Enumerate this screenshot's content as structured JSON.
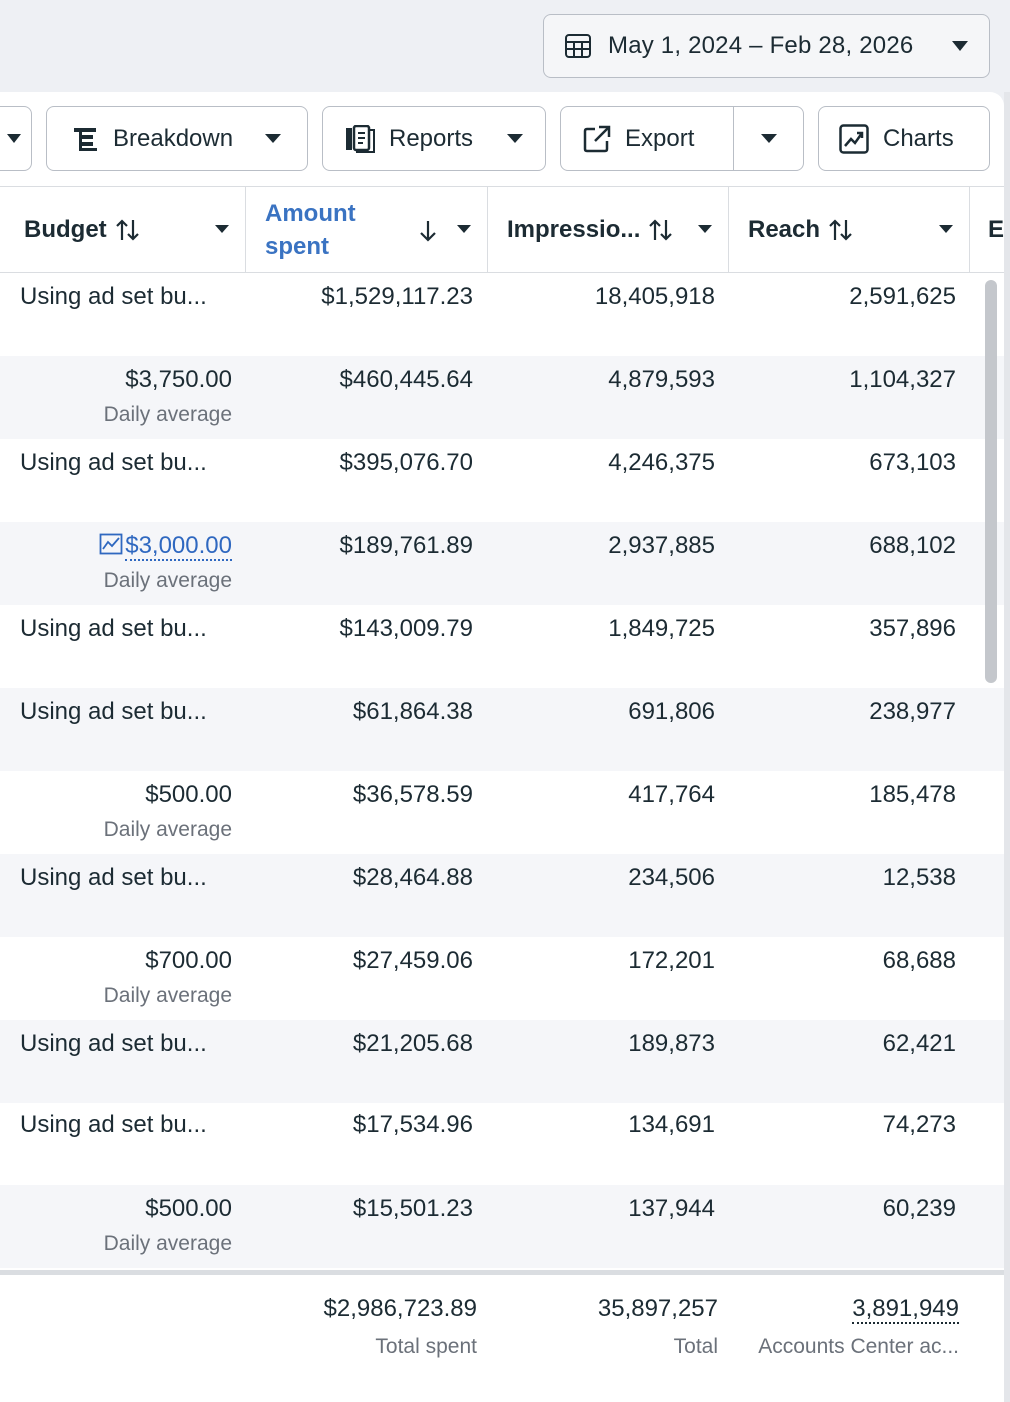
{
  "date_range": {
    "label": "May 1, 2024 – Feb 28, 2026"
  },
  "toolbar": {
    "breakdown_label": "Breakdown",
    "reports_label": "Reports",
    "export_label": "Export",
    "charts_label": "Charts"
  },
  "columns": {
    "budget": "Budget",
    "amount_spent": "Amount spent",
    "impressions": "Impressio...",
    "reach": "Reach",
    "next": "E"
  },
  "rows": [
    {
      "budget": "Using ad set bu...",
      "budget_sub": "",
      "spent": "$1,529,117.23",
      "impressions": "18,405,918",
      "reach": "2,591,625"
    },
    {
      "budget": "$3,750.00",
      "budget_sub": "Daily average",
      "spent": "$460,445.64",
      "impressions": "4,879,593",
      "reach": "1,104,327"
    },
    {
      "budget": "Using ad set bu...",
      "budget_sub": "",
      "spent": "$395,076.70",
      "impressions": "4,246,375",
      "reach": "673,103"
    },
    {
      "budget": "$3,000.00",
      "budget_sub": "Daily average",
      "spent": "$189,761.89",
      "impressions": "2,937,885",
      "reach": "688,102"
    },
    {
      "budget": "Using ad set bu...",
      "budget_sub": "",
      "spent": "$143,009.79",
      "impressions": "1,849,725",
      "reach": "357,896"
    },
    {
      "budget": "Using ad set bu...",
      "budget_sub": "",
      "spent": "$61,864.38",
      "impressions": "691,806",
      "reach": "238,977"
    },
    {
      "budget": "$500.00",
      "budget_sub": "Daily average",
      "spent": "$36,578.59",
      "impressions": "417,764",
      "reach": "185,478"
    },
    {
      "budget": "Using ad set bu...",
      "budget_sub": "",
      "spent": "$28,464.88",
      "impressions": "234,506",
      "reach": "12,538"
    },
    {
      "budget": "$700.00",
      "budget_sub": "Daily average",
      "spent": "$27,459.06",
      "impressions": "172,201",
      "reach": "68,688"
    },
    {
      "budget": "Using ad set bu...",
      "budget_sub": "",
      "spent": "$21,205.68",
      "impressions": "189,873",
      "reach": "62,421"
    },
    {
      "budget": "Using ad set bu...",
      "budget_sub": "",
      "spent": "$17,534.96",
      "impressions": "134,691",
      "reach": "74,273"
    },
    {
      "budget": "$500.00",
      "budget_sub": "Daily average",
      "spent": "$15,501.23",
      "impressions": "137,944",
      "reach": "60,239"
    }
  ],
  "totals": {
    "spent": "$2,986,723.89",
    "spent_label": "Total spent",
    "impressions": "35,897,257",
    "impressions_label": "Total",
    "reach": "3,891,949",
    "reach_label": "Accounts Center ac..."
  },
  "icons": {
    "calendar": "calendar-icon",
    "breakdown": "breakdown-icon",
    "reports": "reports-icon",
    "export": "export-icon",
    "charts": "charts-icon",
    "trend": "trend-chart-icon"
  },
  "colors": {
    "accent_blue": "#3a73c2",
    "link_blue": "#2f68c0",
    "text": "#1c2b33",
    "muted": "#6b717a"
  }
}
